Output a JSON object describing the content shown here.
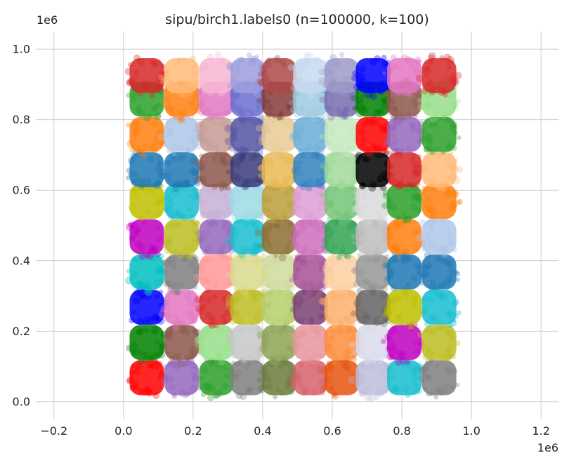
{
  "chart_data": {
    "type": "scatter",
    "title": "sipu/birch1.labels0 (n=100000, k=100)",
    "xlabel": "",
    "ylabel": "",
    "x_offset_label": "1e6",
    "y_offset_label": "1e6",
    "xlim": [
      -0.25,
      1.25
    ],
    "ylim": [
      -0.05,
      1.05
    ],
    "xticks": [
      -0.2,
      0.0,
      0.2,
      0.4,
      0.6,
      0.8,
      1.0,
      1.2
    ],
    "yticks": [
      0.0,
      0.2,
      0.4,
      0.6,
      0.8,
      1.0
    ],
    "xtick_labels": [
      "−0.2",
      "0.0",
      "0.2",
      "0.4",
      "0.6",
      "0.8",
      "1.0",
      "1.2"
    ],
    "ytick_labels": [
      "0.0",
      "0.2",
      "0.4",
      "0.6",
      "0.8",
      "1.0"
    ],
    "grid": true,
    "style": "seaborn-whitegrid",
    "grid_rows": 10,
    "grid_cols": 10,
    "cluster_x_centers": [
      0.067,
      0.167,
      0.267,
      0.357,
      0.447,
      0.537,
      0.627,
      0.717,
      0.807,
      0.907
    ],
    "cluster_y_centers": [
      0.068,
      0.168,
      0.268,
      0.368,
      0.468,
      0.568,
      0.658,
      0.758,
      0.858,
      0.925
    ],
    "cluster_half_width": 0.055,
    "cluster_half_height": 0.055,
    "cluster_colors": [
      [
        "#ff0000",
        "#9467bd",
        "#2ca02c",
        "#7f7f7f",
        "#6b7c3c",
        "#d6616b",
        "#e6550d",
        "#bcbddc",
        "#17becf",
        "#7f7f7f"
      ],
      [
        "#008000",
        "#8c564b",
        "#98df8a",
        "#c7c7c7",
        "#8ca252",
        "#e7969c",
        "#fd8d3c",
        "#dadaeb",
        "#bf00bf",
        "#bcbd22"
      ],
      [
        "#0000ff",
        "#e377c2",
        "#d62728",
        "#bcbd22",
        "#b5cf6b",
        "#7b4173",
        "#fdae6b",
        "#636363",
        "#bfbf00",
        "#17becf"
      ],
      [
        "#00bfbf",
        "#7f7f7f",
        "#ff9896",
        "#dbdb8d",
        "#cedb9c",
        "#a55194",
        "#fdd0a2",
        "#969696",
        "#1f77b4",
        "#1f77b4"
      ],
      [
        "#bf00bf",
        "#bcbd22",
        "#9467bd",
        "#17becf",
        "#8c6d31",
        "#ce6dbd",
        "#31a354",
        "#bdbdbd",
        "#ff7f0e",
        "#aec7e8"
      ],
      [
        "#bfbf00",
        "#17becf",
        "#c5b0d5",
        "#9edae5",
        "#bd9e39",
        "#de9ed6",
        "#74c476",
        "#d9d9d9",
        "#2ca02c",
        "#ff7f0e"
      ],
      [
        "#1f77b4",
        "#1f77b4",
        "#8c564b",
        "#393b79",
        "#e7ba52",
        "#3182bd",
        "#a1d99b",
        "#000000",
        "#d62728",
        "#ffbb78"
      ],
      [
        "#ff7f0e",
        "#aec7e8",
        "#c49c94",
        "#5254a3",
        "#e7cb94",
        "#6baed6",
        "#c7e9c0",
        "#ff0000",
        "#9467bd",
        "#2ca02c"
      ],
      [
        "#2ca02c",
        "#ff7f0e",
        "#e377c2",
        "#6b6ecf",
        "#843c39",
        "#9ecae1",
        "#756bb1",
        "#008000",
        "#8c564b",
        "#98df8a"
      ],
      [
        "#d62728",
        "#ffbb78",
        "#f7b6d2",
        "#9c9ede",
        "#ad494a",
        "#c6dbef",
        "#9e9ac8",
        "#0000ff",
        "#e377c2",
        "#d62728"
      ]
    ]
  }
}
